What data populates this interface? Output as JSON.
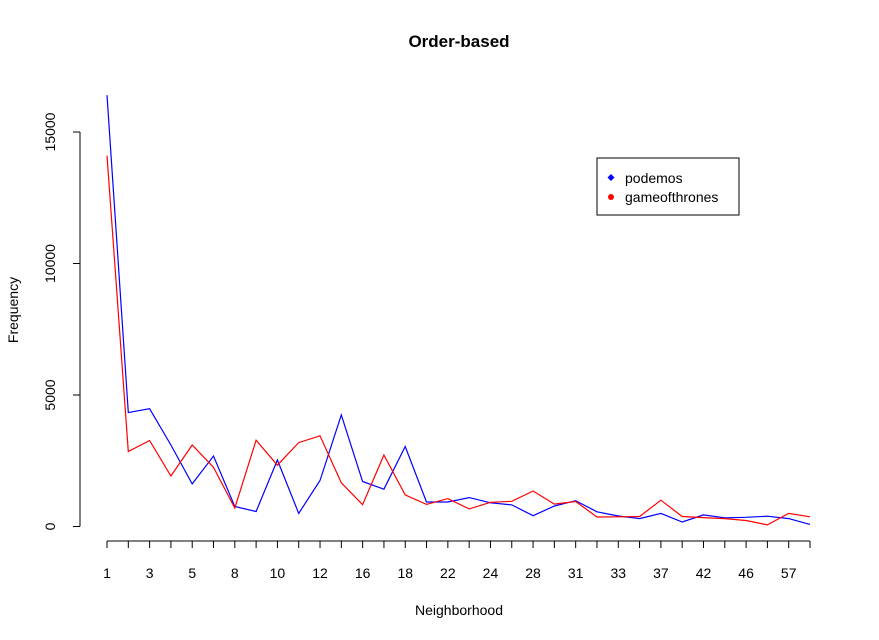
{
  "chart_data": {
    "type": "line",
    "title": "Order-based",
    "xlabel": "Neighborhood",
    "ylabel": "Frequency",
    "ylim": [
      0,
      16500
    ],
    "y_ticks": [
      0,
      5000,
      10000,
      15000
    ],
    "x_tick_labels": [
      "1",
      "3",
      "5",
      "8",
      "10",
      "12",
      "16",
      "18",
      "22",
      "24",
      "28",
      "31",
      "33",
      "37",
      "42",
      "46",
      "57"
    ],
    "legend_position": "top-right",
    "grid": false,
    "series": [
      {
        "name": "podemos",
        "color": "#0000ff",
        "values": [
          16400,
          4330,
          4480,
          3100,
          1620,
          2680,
          760,
          570,
          2530,
          500,
          1750,
          4240,
          1710,
          1420,
          3040,
          930,
          930,
          1100,
          900,
          820,
          410,
          780,
          980,
          560,
          400,
          300,
          500,
          170,
          440,
          330,
          350,
          390,
          300,
          80
        ]
      },
      {
        "name": "gameofthrones",
        "color": "#ff0000",
        "values": [
          14100,
          2850,
          3270,
          1920,
          3100,
          2250,
          700,
          3280,
          2330,
          3190,
          3450,
          1660,
          830,
          2720,
          1200,
          840,
          1060,
          670,
          920,
          960,
          1350,
          850,
          950,
          360,
          370,
          380,
          1000,
          380,
          340,
          300,
          230,
          60,
          500,
          370
        ]
      }
    ]
  }
}
